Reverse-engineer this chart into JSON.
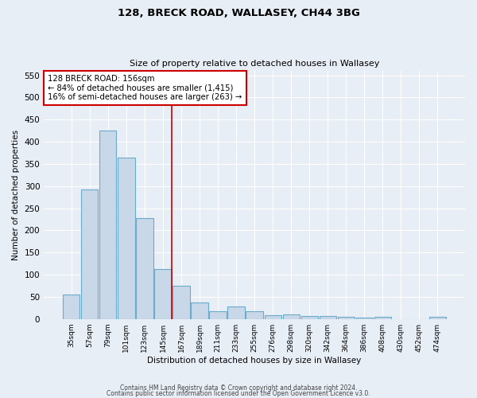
{
  "title": "128, BRECK ROAD, WALLASEY, CH44 3BG",
  "subtitle": "Size of property relative to detached houses in Wallasey",
  "xlabel": "Distribution of detached houses by size in Wallasey",
  "ylabel": "Number of detached properties",
  "bar_color": "#c8d8e8",
  "bar_edge_color": "#6aaaca",
  "background_color": "#e8eef5",
  "grid_color": "#ffffff",
  "fig_background": "#e8eef5",
  "categories": [
    "35sqm",
    "57sqm",
    "79sqm",
    "101sqm",
    "123sqm",
    "145sqm",
    "167sqm",
    "189sqm",
    "211sqm",
    "233sqm",
    "255sqm",
    "276sqm",
    "298sqm",
    "320sqm",
    "342sqm",
    "364sqm",
    "386sqm",
    "408sqm",
    "430sqm",
    "452sqm",
    "474sqm"
  ],
  "values": [
    55,
    293,
    425,
    365,
    228,
    112,
    75,
    38,
    18,
    29,
    17,
    9,
    10,
    7,
    6,
    4,
    3,
    5,
    0,
    0,
    4
  ],
  "ylim": [
    0,
    560
  ],
  "yticks": [
    0,
    50,
    100,
    150,
    200,
    250,
    300,
    350,
    400,
    450,
    500,
    550
  ],
  "red_line_x": 5.5,
  "annotation_line1": "128 BRECK ROAD: 156sqm",
  "annotation_line2": "← 84% of detached houses are smaller (1,415)",
  "annotation_line3": "16% of semi-detached houses are larger (263) →",
  "annotation_box_color": "#ffffff",
  "annotation_box_edge_color": "#cc0000",
  "red_line_color": "#cc0000",
  "footer_line1": "Contains HM Land Registry data © Crown copyright and database right 2024.",
  "footer_line2": "Contains public sector information licensed under the Open Government Licence v3.0."
}
